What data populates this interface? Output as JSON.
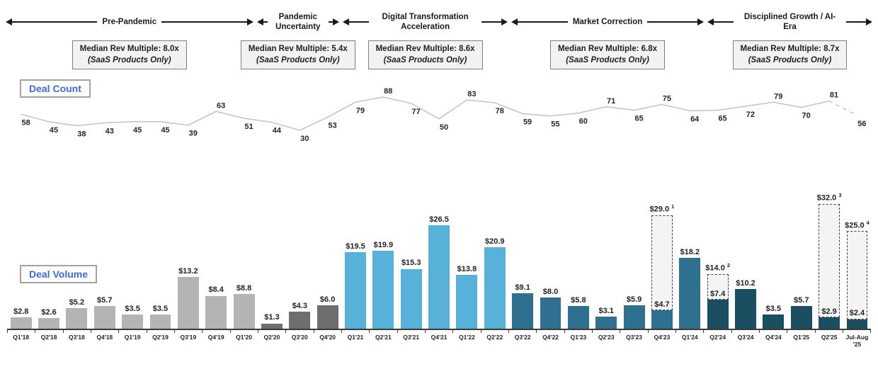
{
  "legend": {
    "deal_count": "Deal Count",
    "deal_volume": "Deal Volume"
  },
  "era_box": {
    "prefix": "Median Rev Multiple:",
    "subtitle": "(SaaS Products Only)"
  },
  "eras": [
    {
      "label": "Pre-Pandemic",
      "multiple": "8.0x",
      "quarters": 9,
      "bar_color": "#b4b4b4"
    },
    {
      "label": "Pandemic Uncertainty",
      "multiple": "5.4x",
      "quarters": 3,
      "bar_color": "#6e6e6e"
    },
    {
      "label": "Digital Transformation Acceleration",
      "multiple": "8.6x",
      "quarters": 6,
      "bar_color": "#57b1d9"
    },
    {
      "label": "Market Correction",
      "multiple": "6.8x",
      "quarters": 7,
      "bar_color": "#2f6f8f"
    },
    {
      "label": "Disciplined Growth / AI-Era",
      "multiple": "8.7x",
      "quarters": 6,
      "bar_color": "#1c4e61"
    }
  ],
  "chart_data": {
    "type": "combo",
    "categories": [
      "Q1'18",
      "Q2'18",
      "Q3'18",
      "Q4'18",
      "Q1'19",
      "Q2'19",
      "Q3'19",
      "Q4'19",
      "Q1'20",
      "Q2'20",
      "Q3'20",
      "Q4'20",
      "Q1'21",
      "Q2'21",
      "Q3'21",
      "Q4'21",
      "Q1'22",
      "Q2'22",
      "Q3'22",
      "Q4'22",
      "Q1'23",
      "Q2'23",
      "Q3'23",
      "Q4'23",
      "Q1'24",
      "Q2'24",
      "Q3'24",
      "Q4'24",
      "Q1'25",
      "Q2'25",
      "Jul-Aug '25"
    ],
    "series": [
      {
        "name": "Deal Count",
        "type": "line",
        "values": [
          58,
          45,
          38,
          43,
          45,
          45,
          39,
          63,
          51,
          44,
          30,
          53,
          79,
          88,
          77,
          50,
          83,
          78,
          59,
          55,
          60,
          71,
          65,
          75,
          64,
          65,
          72,
          79,
          70,
          81,
          56
        ],
        "line_color": "#c2c2c2",
        "last_segment_dashed": true
      },
      {
        "name": "Deal Volume",
        "type": "bar",
        "value_prefix": "$",
        "values": [
          2.8,
          2.6,
          5.2,
          5.7,
          3.5,
          3.5,
          13.2,
          8.4,
          8.8,
          1.3,
          4.3,
          6.0,
          19.5,
          19.9,
          15.3,
          26.5,
          13.8,
          20.9,
          9.1,
          8.0,
          5.8,
          3.1,
          5.9,
          4.7,
          18.2,
          7.4,
          10.2,
          3.5,
          5.7,
          2.9,
          2.4
        ]
      }
    ],
    "annotations": [
      {
        "category": "Q4'23",
        "value": 29.0,
        "label": "$29.0",
        "footnote": "1"
      },
      {
        "category": "Q2'24",
        "value": 14.0,
        "label": "$14.0",
        "footnote": "2"
      },
      {
        "category": "Q2'25",
        "value": 32.0,
        "label": "$32.0",
        "footnote": "3"
      },
      {
        "category": "Jul-Aug '25",
        "value": 25.0,
        "label": "$25.0",
        "footnote": "4"
      }
    ],
    "annotation_style": {
      "fill": "#f4f4f4",
      "border": "dashed #3f3f3f"
    },
    "ylim_volume": [
      0,
      32
    ],
    "ylim_count": [
      30,
      88
    ],
    "grid": false,
    "legend_position": "left-inline"
  }
}
